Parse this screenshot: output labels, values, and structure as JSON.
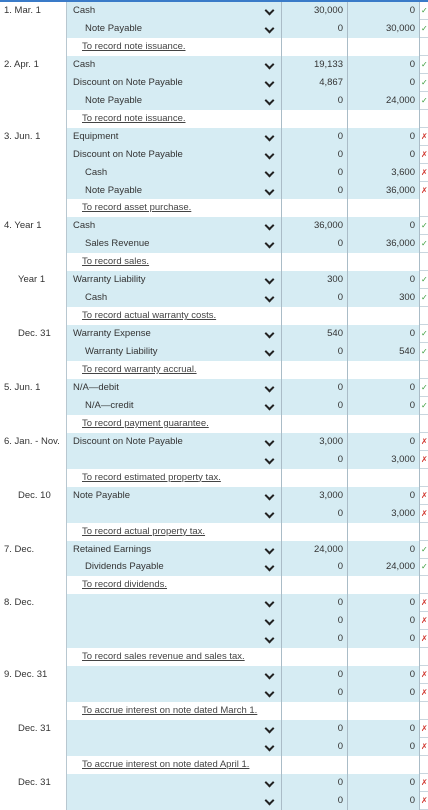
{
  "check_glyphs": {
    "correct": "✓",
    "incorrect": "✗"
  },
  "colors": {
    "input_bg": "#d6ecf3",
    "correct": "#3a9b3a",
    "incorrect": "#d0342c"
  },
  "rows": [
    {
      "date": "1. Mar. 1",
      "account": "Cash",
      "debit": "30,000",
      "credit": "0",
      "mark": "correct"
    },
    {
      "account": "Note Payable",
      "cr": true,
      "debit": "0",
      "credit": "30,000",
      "mark": "correct"
    },
    {
      "memo": "To record note issuance."
    },
    {
      "date": "2. Apr. 1",
      "account": "Cash",
      "debit": "19,133",
      "credit": "0",
      "mark": "correct"
    },
    {
      "account": "Discount on Note Payable",
      "debit": "4,867",
      "credit": "0",
      "mark": "correct"
    },
    {
      "account": "Note Payable",
      "cr": true,
      "debit": "0",
      "credit": "24,000",
      "mark": "correct"
    },
    {
      "memo": "To record note issuance."
    },
    {
      "date": "3. Jun. 1",
      "account": "Equipment",
      "debit": "0",
      "credit": "0",
      "mark": "incorrect"
    },
    {
      "account": "Discount on Note Payable",
      "debit": "0",
      "credit": "0",
      "mark": "incorrect"
    },
    {
      "account": "Cash",
      "cr": true,
      "debit": "0",
      "credit": "3,600",
      "mark": "incorrect"
    },
    {
      "account": "Note Payable",
      "cr": true,
      "debit": "0",
      "credit": "36,000",
      "mark": "incorrect"
    },
    {
      "memo": "To record asset purchase."
    },
    {
      "date": "4. Year 1",
      "account": "Cash",
      "debit": "36,000",
      "credit": "0",
      "mark": "correct"
    },
    {
      "account": "Sales Revenue",
      "cr": true,
      "debit": "0",
      "credit": "36,000",
      "mark": "correct"
    },
    {
      "memo": "To record sales."
    },
    {
      "date": "Year 1",
      "dateIndent": true,
      "account": "Warranty Liability",
      "debit": "300",
      "credit": "0",
      "mark": "correct"
    },
    {
      "account": "Cash",
      "cr": true,
      "debit": "0",
      "credit": "300",
      "mark": "correct"
    },
    {
      "memo": "To record actual warranty costs."
    },
    {
      "date": "Dec. 31",
      "dateIndent": true,
      "account": "Warranty Expense",
      "debit": "540",
      "credit": "0",
      "mark": "correct"
    },
    {
      "account": "Warranty Liability",
      "cr": true,
      "debit": "0",
      "credit": "540",
      "mark": "correct"
    },
    {
      "memo": "To record warranty accrual."
    },
    {
      "date": "5. Jun. 1",
      "account": "N/A—debit",
      "debit": "0",
      "credit": "0",
      "mark": "correct"
    },
    {
      "account": "N/A—credit",
      "cr": true,
      "debit": "0",
      "credit": "0",
      "mark": "correct"
    },
    {
      "memo": "To record payment guarantee."
    },
    {
      "date": "6. Jan. - Nov.",
      "account": "Discount on Note Payable",
      "debit": "3,000",
      "credit": "0",
      "mark": "incorrect"
    },
    {
      "account": "",
      "debit": "0",
      "credit": "3,000",
      "mark": "incorrect"
    },
    {
      "memo": "To record estimated property tax."
    },
    {
      "date": "Dec. 10",
      "dateIndent": true,
      "account": "Note Payable",
      "debit": "3,000",
      "credit": "0",
      "mark": "incorrect"
    },
    {
      "account": "",
      "debit": "0",
      "credit": "3,000",
      "mark": "incorrect"
    },
    {
      "memo": "To record actual property tax."
    },
    {
      "date": "7. Dec.",
      "account": "Retained Earnings",
      "debit": "24,000",
      "credit": "0",
      "mark": "correct"
    },
    {
      "account": "Dividends Payable",
      "cr": true,
      "debit": "0",
      "credit": "24,000",
      "mark": "correct"
    },
    {
      "memo": "To record dividends."
    },
    {
      "date": "8. Dec.",
      "account": "",
      "debit": "0",
      "credit": "0",
      "mark": "incorrect"
    },
    {
      "account": "",
      "debit": "0",
      "credit": "0",
      "mark": "incorrect"
    },
    {
      "account": "",
      "debit": "0",
      "credit": "0",
      "mark": "incorrect"
    },
    {
      "memo": "To record sales revenue and sales tax."
    },
    {
      "date": "9. Dec. 31",
      "account": "",
      "debit": "0",
      "credit": "0",
      "mark": "incorrect"
    },
    {
      "account": "",
      "debit": "0",
      "credit": "0",
      "mark": "incorrect"
    },
    {
      "memo": "To accrue interest on note dated March 1."
    },
    {
      "date": "Dec. 31",
      "dateIndent": true,
      "account": "",
      "debit": "0",
      "credit": "0",
      "mark": "incorrect"
    },
    {
      "account": "",
      "debit": "0",
      "credit": "0",
      "mark": "incorrect"
    },
    {
      "memo": "To accrue interest on note dated April 1."
    },
    {
      "date": "Dec. 31",
      "dateIndent": true,
      "account": "",
      "debit": "0",
      "credit": "0",
      "mark": "incorrect"
    },
    {
      "account": "",
      "debit": "0",
      "credit": "0",
      "mark": "incorrect"
    }
  ]
}
